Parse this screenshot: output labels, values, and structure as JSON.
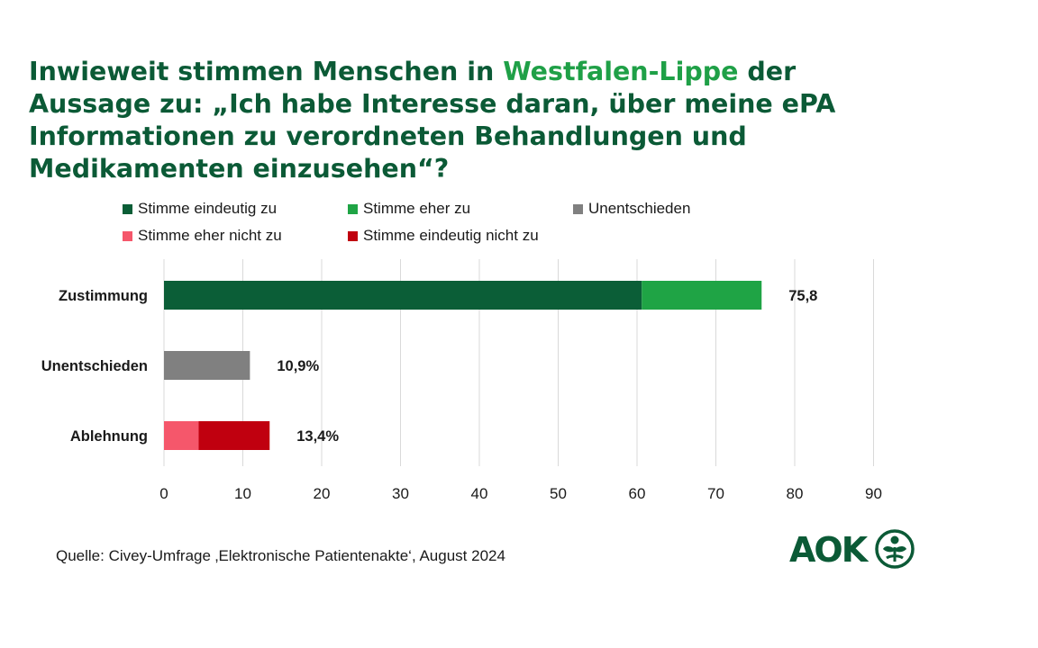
{
  "title": {
    "part1": "Inwieweit stimmen Menschen in ",
    "highlight": "Westfalen-Lippe",
    "part2": " der Aussage zu: „Ich habe Interesse daran, über meine ePA Informationen zu verordneten Behandlungen und Medikamenten einzusehen“?"
  },
  "legend": [
    {
      "label": "Stimme eindeutig zu",
      "color": "#0b5e37"
    },
    {
      "label": "Stimme eher zu",
      "color": "#1fa445"
    },
    {
      "label": "Unentschieden",
      "color": "#808080"
    },
    {
      "label": "Stimme eher nicht zu",
      "color": "#f5576b"
    },
    {
      "label": "Stimme eindeutig nicht zu",
      "color": "#c0000f"
    }
  ],
  "chart_data": {
    "type": "bar",
    "orientation": "horizontal",
    "stacked": true,
    "categories": [
      "Zustimmung",
      "Unentschieden",
      "Ablehnung"
    ],
    "series": [
      {
        "name": "Stimme eindeutig zu",
        "values": [
          60.6,
          0,
          0
        ]
      },
      {
        "name": "Stimme eher zu",
        "values": [
          15.2,
          0,
          0
        ]
      },
      {
        "name": "Unentschieden",
        "values": [
          0,
          10.9,
          0
        ]
      },
      {
        "name": "Stimme eher nicht zu",
        "values": [
          0,
          0,
          4.4
        ]
      },
      {
        "name": "Stimme eindeutig nicht zu",
        "values": [
          0,
          0,
          9.0
        ]
      }
    ],
    "data_labels": [
      "75,8",
      "10,9%",
      "13,4%"
    ],
    "xlim": [
      0,
      90
    ],
    "xticks": [
      0,
      10,
      20,
      30,
      40,
      50,
      60,
      70,
      80,
      90
    ],
    "grid": true,
    "legend_position": "top"
  },
  "source": "Quelle: Civey-Umfrage ‚Elektronische Patientenakte‘, August 2024",
  "logo": {
    "text": "AOK",
    "color": "#0b5a36",
    "icon": "leaf-plant-icon"
  }
}
